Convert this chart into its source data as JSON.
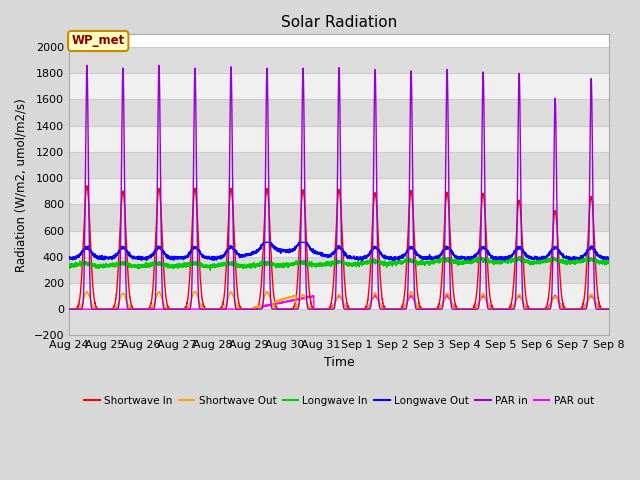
{
  "title": "Solar Radiation",
  "xlabel": "Time",
  "ylabel": "Radiation (W/m2, umol/m2/s)",
  "ylim": [
    -200,
    2100
  ],
  "yticks": [
    -200,
    0,
    200,
    400,
    600,
    800,
    1000,
    1200,
    1400,
    1600,
    1800,
    2000
  ],
  "date_labels": [
    "Aug 24",
    "Aug 25",
    "Aug 26",
    "Aug 27",
    "Aug 28",
    "Aug 29",
    "Aug 30",
    "Aug 31",
    "Sep 1",
    "Sep 2",
    "Sep 3",
    "Sep 4",
    "Sep 5",
    "Sep 6",
    "Sep 7",
    "Sep 8"
  ],
  "annotation_label": "WP_met",
  "annotation_box_color": "#FFFFC0",
  "annotation_border_color": "#CC8800",
  "annotation_text_color": "#880000",
  "series": {
    "shortwave_in": {
      "color": "#FF0000",
      "label": "Shortwave In"
    },
    "shortwave_out": {
      "color": "#FFA500",
      "label": "Shortwave Out"
    },
    "longwave_in": {
      "color": "#00CC00",
      "label": "Longwave In"
    },
    "longwave_out": {
      "color": "#0000FF",
      "label": "Longwave Out"
    },
    "par_in": {
      "color": "#9900CC",
      "label": "PAR in"
    },
    "par_out": {
      "color": "#FF00FF",
      "label": "PAR out"
    }
  },
  "background_color": "#D8D8D8",
  "plot_bg_color": "#FFFFFF",
  "band_color_dark": "#DCDCDC",
  "band_color_light": "#F0F0F0",
  "grid_color": "#CCCCCC",
  "linewidth": 1.0,
  "num_days": 15,
  "sw_in_peaks": [
    940,
    900,
    920,
    920,
    920,
    920,
    910,
    910,
    890,
    900,
    890,
    880,
    830,
    750,
    860
  ],
  "sw_out_peaks": [
    130,
    120,
    130,
    135,
    130,
    130,
    110,
    110,
    120,
    130,
    120,
    115,
    110,
    95,
    110
  ],
  "par_in_peaks": [
    1860,
    1840,
    1860,
    1840,
    1850,
    1840,
    1840,
    1845,
    1830,
    1820,
    1830,
    1810,
    1800,
    1610,
    1760
  ],
  "lw_in_base": 330,
  "lw_out_base": 390
}
